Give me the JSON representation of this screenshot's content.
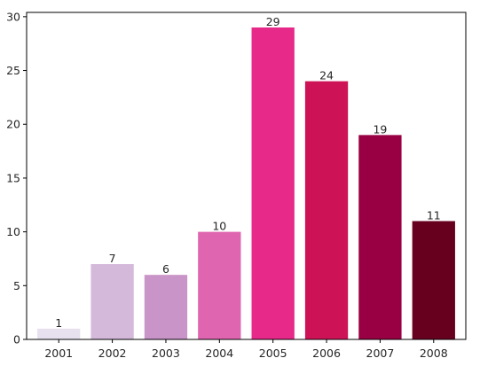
{
  "chart_data": {
    "type": "bar",
    "categories": [
      "2001",
      "2002",
      "2003",
      "2004",
      "2005",
      "2006",
      "2007",
      "2008"
    ],
    "values": [
      1,
      7,
      6,
      10,
      29,
      24,
      19,
      11
    ],
    "data_labels": [
      "1",
      "7",
      "6",
      "10",
      "29",
      "24",
      "19",
      "11"
    ],
    "colors": [
      "#e7e1ef",
      "#d4b9da",
      "#c994c7",
      "#df65b0",
      "#e7298a",
      "#ce1256",
      "#980043",
      "#67001f"
    ],
    "ylim": [
      0,
      30.4
    ],
    "yticks": [
      0,
      5,
      10,
      15,
      20,
      25,
      30
    ],
    "ytick_labels": [
      "0",
      "5",
      "10",
      "15",
      "20",
      "25",
      "30"
    ],
    "grid": false,
    "legend": false
  }
}
